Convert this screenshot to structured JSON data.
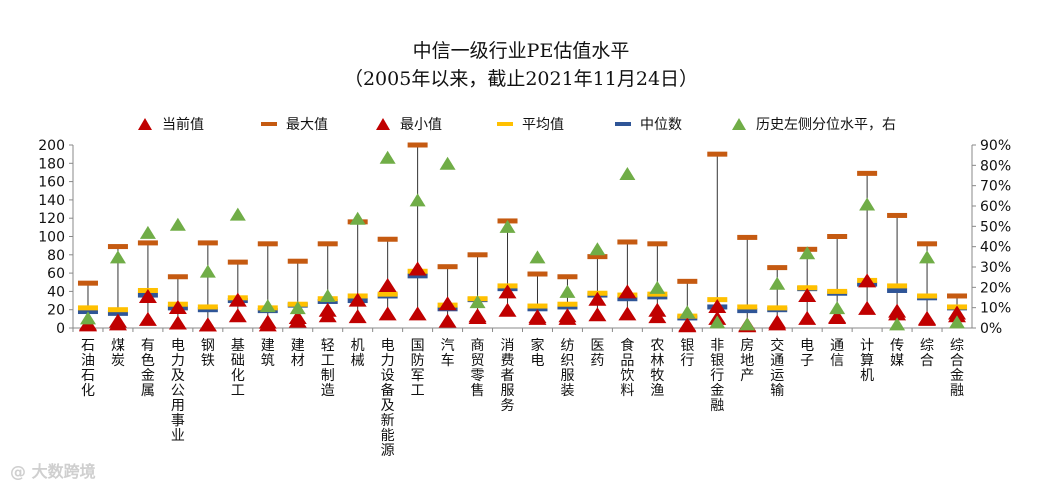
{
  "chart_data": {
    "type": "scatter",
    "title": "中信一级行业PE估值水平",
    "subtitle": "（2005年以来，截止2021年11月24日）",
    "legend_position": "top",
    "categories": [
      "石油石化",
      "煤炭",
      "有色金属",
      "电力及公用事业",
      "钢铁",
      "基础化工",
      "建筑",
      "建材",
      "轻工制造",
      "机械",
      "电力设备及新能源",
      "国防军工",
      "汽车",
      "商贸零售",
      "消费者服务",
      "家电",
      "纺织服装",
      "医药",
      "食品饮料",
      "农林牧渔",
      "银行",
      "非银行金融",
      "房地产",
      "交通运输",
      "电子",
      "通信",
      "计算机",
      "传媒",
      "综合",
      "综合金融"
    ],
    "series": [
      {
        "name": "当前值",
        "axis": "left",
        "color": "#c00000",
        "marker": "triangle",
        "values": [
          4,
          8,
          35,
          23,
          4,
          31,
          7,
          12,
          20,
          31,
          47,
          65,
          27,
          14,
          40,
          13,
          14,
          32,
          40,
          20,
          4,
          24,
          3,
          5,
          36,
          13,
          52,
          19,
          11,
          17
        ]
      },
      {
        "name": "最大值",
        "axis": "left",
        "color": "#c55a11",
        "marker": "dash",
        "values": [
          49,
          89,
          93,
          56,
          93,
          72,
          92,
          73,
          92,
          116,
          97,
          200,
          67,
          80,
          117,
          59,
          56,
          78,
          94,
          92,
          51,
          190,
          99,
          66,
          86,
          100,
          169,
          123,
          92,
          35
        ]
      },
      {
        "name": "最小值",
        "axis": "left",
        "color": "#c00000",
        "marker": "triangle",
        "values": [
          5,
          5,
          10,
          6,
          4,
          14,
          4,
          8,
          14,
          13,
          16,
          16,
          8,
          12,
          20,
          11,
          11,
          15,
          16,
          13,
          3,
          11,
          4,
          7,
          11,
          12,
          22,
          16,
          10,
          14
        ]
      },
      {
        "name": "平均值",
        "axis": "left",
        "color": "#ffc000",
        "marker": "dash",
        "values": [
          22,
          20,
          41,
          26,
          23,
          33,
          22,
          26,
          32,
          35,
          37,
          62,
          25,
          32,
          46,
          24,
          26,
          38,
          36,
          37,
          13,
          31,
          23,
          22,
          44,
          40,
          52,
          46,
          35,
          23
        ]
      },
      {
        "name": "中位数",
        "axis": "left",
        "color": "#2f5597",
        "marker": "dash",
        "values": [
          18,
          16,
          36,
          22,
          20,
          30,
          19,
          25,
          29,
          30,
          35,
          57,
          21,
          31,
          43,
          21,
          23,
          36,
          32,
          34,
          11,
          23,
          19,
          20,
          43,
          38,
          48,
          41,
          33,
          22
        ]
      },
      {
        "name": "历史左侧分位水平，右",
        "axis": "right",
        "color": "#70ad47",
        "marker": "triangle",
        "values": [
          0.05,
          0.35,
          0.47,
          0.51,
          0.28,
          0.56,
          0.11,
          0.1,
          0.16,
          0.54,
          0.84,
          0.63,
          0.81,
          0.13,
          0.5,
          0.35,
          0.18,
          0.39,
          0.76,
          0.2,
          0.08,
          0.03,
          0.02,
          0.22,
          0.37,
          0.1,
          0.61,
          0.02,
          0.35,
          0.03
        ]
      }
    ],
    "ylim": [
      0,
      200
    ],
    "yticks": [
      "0",
      "20",
      "40",
      "60",
      "80",
      "100",
      "120",
      "140",
      "160",
      "180",
      "200"
    ],
    "y2lim": [
      0,
      0.9
    ],
    "y2ticks": [
      "0%",
      "10%",
      "20%",
      "30%",
      "40%",
      "50%",
      "60%",
      "70%",
      "80%",
      "90%"
    ]
  },
  "watermark": "大数跨境"
}
